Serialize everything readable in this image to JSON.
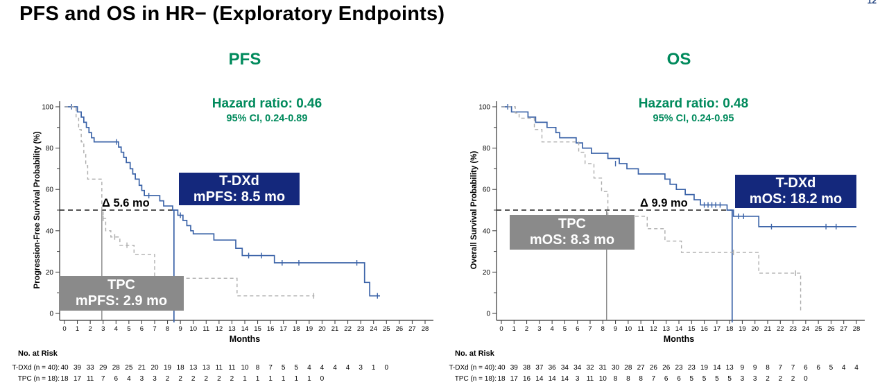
{
  "page_number": "12",
  "title": "PFS and OS in HR− (Exploratory Endpoints)",
  "colors": {
    "green_accent": "#008a5c",
    "tdxd_blue": "#3b63a8",
    "navy_box": "#14287c",
    "gray_box": "#8a8a8a",
    "tpc_gray": "#adadad",
    "axis_black": "#333333"
  },
  "panels": [
    {
      "title": "PFS",
      "hazard_line": "Hazard ratio: 0.46",
      "ci_line": "95% CI, 0.24-0.89",
      "delta_label": "Δ 5.6 mo",
      "tdxd_box": {
        "line1": "T-DXd",
        "line2": "mPFS: 8.5 mo"
      },
      "tpc_box": {
        "line1": "TPC",
        "line2": "mPFS: 2.9 mo"
      }
    },
    {
      "title": "OS",
      "hazard_line": "Hazard ratio: 0.48",
      "ci_line": "95% CI, 0.24-0.95",
      "delta_label": "Δ 9.9 mo",
      "tdxd_box": {
        "line1": "T-DXd",
        "line2": "mOS: 18.2 mo"
      },
      "tpc_box": {
        "line1": "TPC",
        "line2": "mOS: 8.3 mo"
      }
    }
  ],
  "chart_data": [
    {
      "type": "line",
      "subtype": "kaplan-meier-step",
      "title": "PFS",
      "xlabel": "Months",
      "ylabel": "Progression-Free Survival Probability (%)",
      "xlim": [
        0,
        28
      ],
      "ylim": [
        0,
        100
      ],
      "x_tick_step": 1,
      "y_tick_step": 10,
      "y_label_step": 20,
      "grid": false,
      "hazard_ratio": 0.46,
      "ci_95": "0.24-0.89",
      "median_tdxd_months": 8.5,
      "median_tpc_months": 2.9,
      "delta_months": 5.6,
      "series": [
        {
          "name": "T-DXd",
          "style": "solid",
          "color": "#3b63a8",
          "width": 1.7,
          "steps": [
            [
              1.0,
              97.5
            ],
            [
              1.3,
              95
            ],
            [
              1.5,
              92.5
            ],
            [
              1.7,
              90
            ],
            [
              1.9,
              87.5
            ],
            [
              2.1,
              85
            ],
            [
              2.3,
              83
            ],
            [
              4.2,
              80.5
            ],
            [
              4.4,
              78
            ],
            [
              4.6,
              75.5
            ],
            [
              4.8,
              73
            ],
            [
              5.1,
              70
            ],
            [
              5.3,
              67.5
            ],
            [
              5.5,
              65
            ],
            [
              5.8,
              62
            ],
            [
              6.0,
              59.5
            ],
            [
              6.2,
              57
            ],
            [
              7.4,
              54.5
            ],
            [
              7.7,
              52
            ],
            [
              8.4,
              50
            ],
            [
              8.8,
              47.5
            ],
            [
              9.2,
              45
            ],
            [
              9.5,
              42.5
            ],
            [
              9.8,
              40
            ],
            [
              10.0,
              38.5
            ],
            [
              11.6,
              35.5
            ],
            [
              13.3,
              31.5
            ],
            [
              13.8,
              28
            ],
            [
              16.3,
              24.5
            ],
            [
              23.3,
              15
            ],
            [
              23.7,
              8.5
            ]
          ],
          "end": 24.5,
          "censors": [
            [
              0.55,
              100
            ],
            [
              4.05,
              83
            ],
            [
              6.55,
              57
            ],
            [
              9.0,
              47.5
            ],
            [
              14.3,
              28
            ],
            [
              15.3,
              28
            ],
            [
              16.9,
              24.5
            ],
            [
              18.2,
              24.5
            ],
            [
              22.7,
              24.5
            ],
            [
              24.3,
              8.5
            ]
          ]
        },
        {
          "name": "TPC",
          "style": "dashed",
          "color": "#adadad",
          "width": 1.4,
          "dash": "5,4",
          "steps": [
            [
              0.9,
              94.5
            ],
            [
              1.1,
              89
            ],
            [
              1.3,
              83
            ],
            [
              1.5,
              77
            ],
            [
              1.65,
              71.5
            ],
            [
              1.8,
              65
            ],
            [
              2.9,
              50
            ],
            [
              3.0,
              46
            ],
            [
              3.2,
              40
            ],
            [
              3.6,
              37
            ],
            [
              4.3,
              33
            ],
            [
              5.4,
              28.5
            ],
            [
              7.0,
              17
            ],
            [
              13.4,
              8.5
            ]
          ],
          "end": 19.4,
          "censors": [
            [
              3.0,
              46
            ],
            [
              3.9,
              37
            ],
            [
              4.85,
              33
            ],
            [
              19.35,
              8.5
            ]
          ]
        }
      ],
      "at_risk": {
        "header": "No. at Risk",
        "rows": [
          {
            "label": "T-DXd (n = 40):",
            "values": [
              40,
              39,
              33,
              29,
              28,
              25,
              21,
              20,
              19,
              18,
              13,
              13,
              11,
              11,
              10,
              8,
              7,
              5,
              5,
              4,
              4,
              4,
              4,
              3,
              1,
              0
            ]
          },
          {
            "label": "TPC (n = 18):",
            "values": [
              18,
              17,
              11,
              7,
              6,
              4,
              3,
              3,
              2,
              2,
              2,
              2,
              2,
              2,
              1,
              1,
              1,
              1,
              1,
              1,
              0
            ]
          }
        ]
      }
    },
    {
      "type": "line",
      "subtype": "kaplan-meier-step",
      "title": "OS",
      "xlabel": "Months",
      "ylabel": "Overall Survival Probability (%)",
      "xlim": [
        0,
        28
      ],
      "ylim": [
        0,
        100
      ],
      "x_tick_step": 1,
      "y_tick_step": 10,
      "y_label_step": 20,
      "grid": false,
      "hazard_ratio": 0.48,
      "ci_95": "0.24-0.95",
      "median_tdxd_months": 18.2,
      "median_tpc_months": 8.3,
      "delta_months": 9.9,
      "series": [
        {
          "name": "T-DXd",
          "style": "solid",
          "color": "#3b63a8",
          "width": 1.7,
          "steps": [
            [
              0.8,
              97.5
            ],
            [
              2.1,
              95
            ],
            [
              2.7,
              92.5
            ],
            [
              3.6,
              90
            ],
            [
              4.3,
              87.5
            ],
            [
              4.6,
              85
            ],
            [
              5.9,
              82.5
            ],
            [
              6.4,
              80
            ],
            [
              7.1,
              77.5
            ],
            [
              8.4,
              75
            ],
            [
              9.3,
              72.5
            ],
            [
              9.9,
              70
            ],
            [
              10.8,
              67.5
            ],
            [
              12.9,
              65
            ],
            [
              13.3,
              62.5
            ],
            [
              13.8,
              60
            ],
            [
              14.5,
              57.5
            ],
            [
              15.2,
              55
            ],
            [
              15.7,
              52.5
            ],
            [
              17.8,
              50
            ],
            [
              18.3,
              47
            ],
            [
              20.3,
              42
            ]
          ],
          "end": 28,
          "censors": [
            [
              0.5,
              100
            ],
            [
              9.0,
              72.5
            ],
            [
              16.0,
              52.5
            ],
            [
              16.3,
              52.5
            ],
            [
              16.6,
              52.5
            ],
            [
              16.9,
              52.5
            ],
            [
              17.25,
              52.5
            ],
            [
              18.7,
              47
            ],
            [
              19.1,
              47
            ],
            [
              21.3,
              42
            ],
            [
              25.6,
              42
            ],
            [
              26.4,
              42
            ]
          ]
        },
        {
          "name": "TPC",
          "style": "dashed",
          "color": "#adadad",
          "width": 1.4,
          "dash": "5,4",
          "steps": [
            [
              1.1,
              97
            ],
            [
              1.4,
              94.5
            ],
            [
              2.6,
              89
            ],
            [
              3.2,
              83
            ],
            [
              6.1,
              78
            ],
            [
              6.6,
              72.5
            ],
            [
              7.3,
              65.5
            ],
            [
              7.9,
              59
            ],
            [
              8.4,
              47
            ],
            [
              11.5,
              41
            ],
            [
              12.9,
              35
            ],
            [
              14.2,
              29.5
            ],
            [
              20.3,
              19.5
            ],
            [
              23.6,
              1
            ]
          ],
          "end": 23.7,
          "censors": [
            [
              18.3,
              29.5
            ],
            [
              23.2,
              19.5
            ]
          ]
        }
      ],
      "at_risk": {
        "header": "No. at Risk",
        "rows": [
          {
            "label": "T-DXd (n = 40):",
            "values": [
              40,
              39,
              38,
              37,
              36,
              34,
              34,
              32,
              31,
              30,
              28,
              27,
              26,
              26,
              23,
              23,
              19,
              14,
              13,
              9,
              9,
              8,
              7,
              7,
              6,
              6,
              5,
              4,
              4
            ]
          },
          {
            "label": "TPC (n = 18):",
            "values": [
              18,
              17,
              16,
              14,
              14,
              14,
              3,
              11,
              10,
              8,
              8,
              8,
              7,
              6,
              6,
              5,
              5,
              5,
              5,
              3,
              3,
              2,
              2,
              2,
              0
            ]
          }
        ]
      }
    }
  ]
}
